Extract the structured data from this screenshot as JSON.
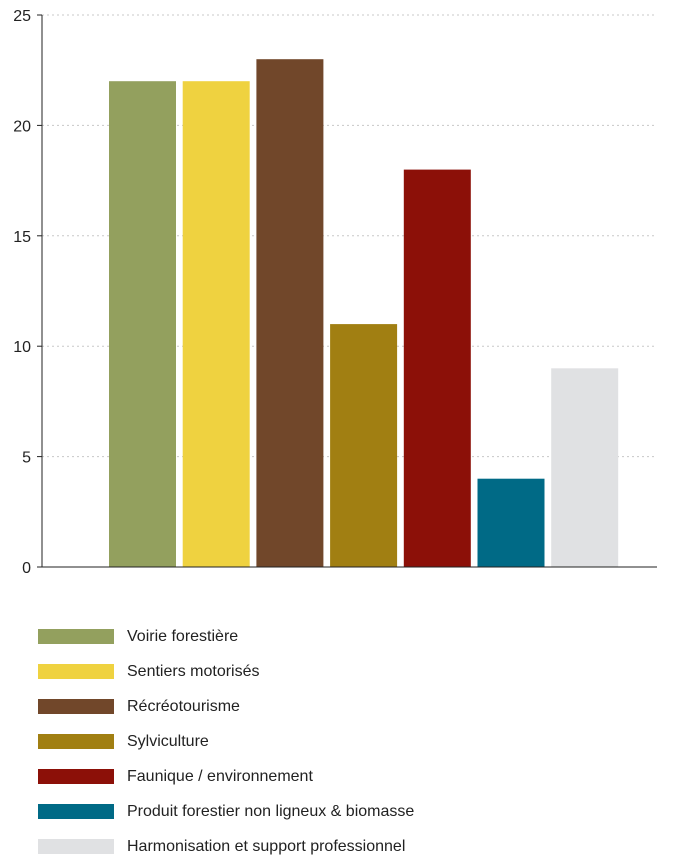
{
  "chart_data": {
    "type": "bar",
    "categories": [
      "Voirie forestière",
      "Sentiers motorisés",
      "Récréotourisme",
      "Sylviculture",
      "Faunique / environnement",
      "Produit forestier non ligneux & biomasse",
      "Harmonisation et support professionnel"
    ],
    "values": [
      22,
      22,
      23,
      11,
      18,
      4,
      9
    ],
    "colors": [
      "#93a05e",
      "#efd240",
      "#71472a",
      "#a17f12",
      "#8c1008",
      "#006a86",
      "#e0e1e3"
    ],
    "ylim": [
      0,
      25
    ],
    "yticks": [
      0,
      5,
      10,
      15,
      20,
      25
    ],
    "grid": true,
    "legend_position": "bottom",
    "title": "",
    "xlabel": "",
    "ylabel": ""
  }
}
